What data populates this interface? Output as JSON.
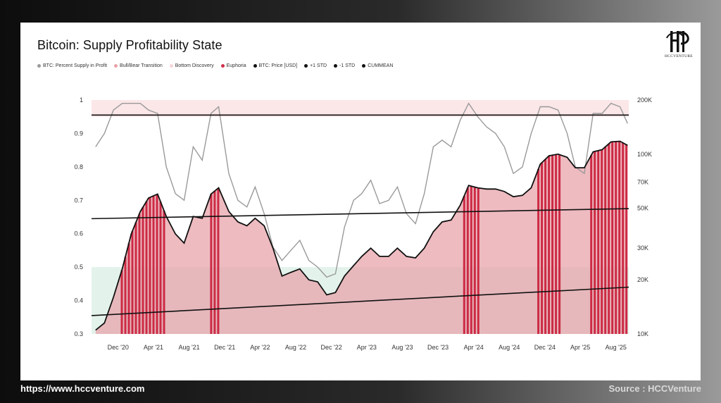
{
  "chart_data": {
    "type": "area",
    "title": "Bitcoin: Supply Profitability State",
    "legend": [
      {
        "name": "BTC: Percent Supply in Profit",
        "color": "#9a9a9a"
      },
      {
        "name": "Bull/Bear Transition",
        "color": "#e8a1a8"
      },
      {
        "name": "Bottom Discovery",
        "color": "#f5d5d8"
      },
      {
        "name": "Euphoria",
        "color": "#d0304a"
      },
      {
        "name": "BTC: Price [USD]",
        "color": "#111111"
      },
      {
        "name": "+1 STD",
        "color": "#111111"
      },
      {
        "name": "-1 STD",
        "color": "#111111"
      },
      {
        "name": "CUMMEAN",
        "color": "#111111"
      }
    ],
    "x_ticks": [
      "Dec '20",
      "Apr '21",
      "Aug '21",
      "Dec '21",
      "Apr '22",
      "Aug '22",
      "Dec '22",
      "Apr '23",
      "Aug '23",
      "Dec '23",
      "Apr '24",
      "Aug '24",
      "Dec '24",
      "Apr '25",
      "Aug '25"
    ],
    "y_left": {
      "ticks": [
        "0.3",
        "0.4",
        "0.5",
        "0.6",
        "0.7",
        "0.8",
        "0.9",
        "1"
      ],
      "range": [
        0.3,
        1.0
      ]
    },
    "y_right": {
      "ticks": [
        "10K",
        "20K",
        "30K",
        "50K",
        "70K",
        "100K",
        "200K"
      ],
      "scale": "log",
      "range": [
        10000,
        200000
      ]
    },
    "x_range": [
      "2020-09",
      "2025-09"
    ],
    "bands": [
      {
        "name": "Euphoria",
        "from": 0.95,
        "to": 1.0,
        "color": "#fbe6e8"
      },
      {
        "name": "Bottom Discovery",
        "from": 0.3,
        "to": 0.5,
        "color": "#e3f3ec"
      }
    ],
    "price_series": {
      "name": "BTC: Price [USD]",
      "dates": [
        "2020-09-15",
        "2020-10-15",
        "2020-11-15",
        "2020-12-15",
        "2021-01-15",
        "2021-02-15",
        "2021-03-15",
        "2021-04-15",
        "2021-05-15",
        "2021-06-15",
        "2021-07-15",
        "2021-08-15",
        "2021-09-15",
        "2021-10-15",
        "2021-11-10",
        "2021-12-15",
        "2022-01-15",
        "2022-02-15",
        "2022-03-15",
        "2022-04-15",
        "2022-05-15",
        "2022-06-15",
        "2022-07-15",
        "2022-08-15",
        "2022-09-15",
        "2022-10-15",
        "2022-11-15",
        "2022-12-15",
        "2023-01-15",
        "2023-02-15",
        "2023-03-15",
        "2023-04-15",
        "2023-05-15",
        "2023-06-15",
        "2023-07-15",
        "2023-08-15",
        "2023-09-15",
        "2023-10-15",
        "2023-11-15",
        "2023-12-15",
        "2024-01-15",
        "2024-02-15",
        "2024-03-15",
        "2024-04-15",
        "2024-05-15",
        "2024-06-15",
        "2024-07-15",
        "2024-08-15",
        "2024-09-15",
        "2024-10-15",
        "2024-11-15",
        "2024-12-15",
        "2025-01-15",
        "2025-02-15",
        "2025-03-15",
        "2025-04-15",
        "2025-05-15",
        "2025-06-15",
        "2025-07-15",
        "2025-08-15",
        "2025-09-10"
      ],
      "values": [
        10500,
        11500,
        16000,
        23000,
        36000,
        48000,
        57000,
        60000,
        45000,
        36000,
        32000,
        45000,
        44000,
        60000,
        65000,
        48000,
        42000,
        40000,
        44000,
        40000,
        30000,
        21000,
        22000,
        23000,
        20000,
        19500,
        16500,
        17000,
        21000,
        24000,
        27000,
        30000,
        27000,
        27000,
        30000,
        27000,
        26500,
        30000,
        37000,
        42000,
        43000,
        52000,
        67000,
        65000,
        64000,
        64000,
        62000,
        58000,
        59000,
        65000,
        88000,
        98000,
        100000,
        96000,
        84000,
        84000,
        103000,
        106000,
        117000,
        118000,
        112000
      ]
    },
    "supply_in_profit": {
      "name": "BTC: Percent Supply in Profit",
      "dates": [
        "2020-09-15",
        "2020-10-15",
        "2020-11-15",
        "2020-12-15",
        "2021-01-15",
        "2021-02-15",
        "2021-03-15",
        "2021-04-15",
        "2021-05-15",
        "2021-06-15",
        "2021-07-15",
        "2021-08-15",
        "2021-09-15",
        "2021-10-15",
        "2021-11-10",
        "2021-12-15",
        "2022-01-15",
        "2022-02-15",
        "2022-03-15",
        "2022-04-15",
        "2022-05-15",
        "2022-06-15",
        "2022-07-15",
        "2022-08-15",
        "2022-09-15",
        "2022-10-15",
        "2022-11-15",
        "2022-12-15",
        "2023-01-15",
        "2023-02-15",
        "2023-03-15",
        "2023-04-15",
        "2023-05-15",
        "2023-06-15",
        "2023-07-15",
        "2023-08-15",
        "2023-09-15",
        "2023-10-15",
        "2023-11-15",
        "2023-12-15",
        "2024-01-15",
        "2024-02-15",
        "2024-03-15",
        "2024-04-15",
        "2024-05-15",
        "2024-06-15",
        "2024-07-15",
        "2024-08-15",
        "2024-09-15",
        "2024-10-15",
        "2024-11-15",
        "2024-12-15",
        "2025-01-15",
        "2025-02-15",
        "2025-03-15",
        "2025-04-15",
        "2025-05-15",
        "2025-06-15",
        "2025-07-15",
        "2025-08-15",
        "2025-09-10"
      ],
      "values": [
        0.86,
        0.9,
        0.97,
        0.99,
        0.99,
        0.99,
        0.97,
        0.96,
        0.8,
        0.72,
        0.7,
        0.86,
        0.82,
        0.96,
        0.98,
        0.78,
        0.7,
        0.68,
        0.74,
        0.66,
        0.56,
        0.52,
        0.55,
        0.58,
        0.52,
        0.5,
        0.47,
        0.48,
        0.62,
        0.7,
        0.72,
        0.76,
        0.69,
        0.7,
        0.74,
        0.66,
        0.63,
        0.72,
        0.86,
        0.88,
        0.86,
        0.94,
        0.99,
        0.95,
        0.92,
        0.9,
        0.86,
        0.78,
        0.8,
        0.9,
        0.98,
        0.98,
        0.97,
        0.9,
        0.8,
        0.78,
        0.96,
        0.96,
        0.99,
        0.98,
        0.93
      ]
    },
    "reference_lines": [
      {
        "name": "+1 STD",
        "start": 0.955,
        "end": 0.955
      },
      {
        "name": "CUMMEAN",
        "start": 0.645,
        "end": 0.675
      },
      {
        "name": "-1 STD",
        "start": 0.355,
        "end": 0.44
      }
    ],
    "euphoria_periods": [
      [
        "2020-12-10",
        "2021-05-10"
      ],
      [
        "2021-10-12",
        "2021-11-15"
      ],
      [
        "2024-02-25",
        "2024-04-15"
      ],
      [
        "2024-11-05",
        "2025-01-25"
      ],
      [
        "2025-05-05",
        "2025-09-10"
      ]
    ],
    "grid": false
  },
  "footer": {
    "website": "https://www.hccventure.com",
    "source": "Source : HCCVenture"
  },
  "logo": {
    "text": "HCCVENTURE"
  }
}
